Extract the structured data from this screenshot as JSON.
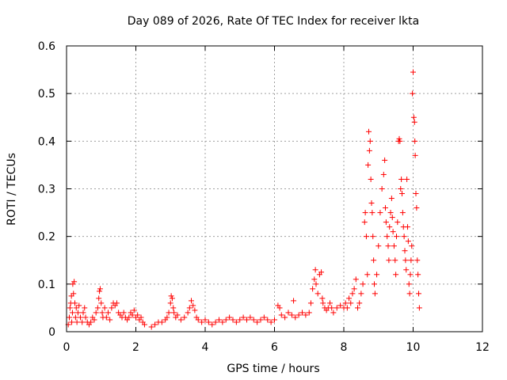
{
  "chart_data": {
    "type": "scatter",
    "title": "Day 089 of 2026, Rate Of TEC Index for receiver lkta",
    "xlabel": "GPS time / hours",
    "ylabel": "ROTI / TECUs",
    "xlim": [
      0,
      12
    ],
    "ylim": [
      0,
      0.6
    ],
    "x_ticks": [
      0,
      2,
      4,
      6,
      8,
      10,
      12
    ],
    "x_tick_labels": [
      "0",
      "2",
      "4",
      "6",
      "8",
      "10",
      "12"
    ],
    "y_ticks": [
      0,
      0.1,
      0.2,
      0.3,
      0.4,
      0.5,
      0.6
    ],
    "y_tick_labels": [
      "0",
      "0.1",
      "0.2",
      "0.3",
      "0.4",
      "0.5",
      "0.6"
    ],
    "grid": true,
    "marker": "plus",
    "marker_color": "#ff0000",
    "series": [
      {
        "name": "ROTI",
        "points": [
          [
            0.05,
            0.015
          ],
          [
            0.08,
            0.03
          ],
          [
            0.1,
            0.05
          ],
          [
            0.12,
            0.06
          ],
          [
            0.14,
            0.075
          ],
          [
            0.15,
            0.02
          ],
          [
            0.17,
            0.04
          ],
          [
            0.18,
            0.1
          ],
          [
            0.2,
            0.08
          ],
          [
            0.22,
            0.105
          ],
          [
            0.24,
            0.06
          ],
          [
            0.26,
            0.03
          ],
          [
            0.28,
            0.05
          ],
          [
            0.3,
            0.02
          ],
          [
            0.33,
            0.04
          ],
          [
            0.36,
            0.055
          ],
          [
            0.4,
            0.03
          ],
          [
            0.45,
            0.02
          ],
          [
            0.48,
            0.04
          ],
          [
            0.52,
            0.05
          ],
          [
            0.55,
            0.03
          ],
          [
            0.6,
            0.02
          ],
          [
            0.65,
            0.015
          ],
          [
            0.7,
            0.02
          ],
          [
            0.75,
            0.03
          ],
          [
            0.8,
            0.025
          ],
          [
            0.85,
            0.04
          ],
          [
            0.9,
            0.05
          ],
          [
            0.93,
            0.07
          ],
          [
            0.95,
            0.085
          ],
          [
            0.97,
            0.09
          ],
          [
            1.0,
            0.06
          ],
          [
            1.03,
            0.04
          ],
          [
            1.05,
            0.03
          ],
          [
            1.1,
            0.05
          ],
          [
            1.15,
            0.03
          ],
          [
            1.2,
            0.04
          ],
          [
            1.25,
            0.025
          ],
          [
            1.3,
            0.05
          ],
          [
            1.35,
            0.06
          ],
          [
            1.4,
            0.055
          ],
          [
            1.45,
            0.06
          ],
          [
            1.5,
            0.04
          ],
          [
            1.55,
            0.035
          ],
          [
            1.6,
            0.03
          ],
          [
            1.65,
            0.04
          ],
          [
            1.7,
            0.03
          ],
          [
            1.75,
            0.025
          ],
          [
            1.8,
            0.03
          ],
          [
            1.85,
            0.04
          ],
          [
            1.9,
            0.035
          ],
          [
            1.95,
            0.045
          ],
          [
            2.0,
            0.03
          ],
          [
            2.05,
            0.035
          ],
          [
            2.1,
            0.025
          ],
          [
            2.15,
            0.03
          ],
          [
            2.2,
            0.02
          ],
          [
            2.25,
            0.015
          ],
          [
            2.45,
            0.01
          ],
          [
            2.55,
            0.015
          ],
          [
            2.65,
            0.02
          ],
          [
            2.75,
            0.02
          ],
          [
            2.85,
            0.025
          ],
          [
            2.9,
            0.03
          ],
          [
            2.95,
            0.04
          ],
          [
            3.0,
            0.06
          ],
          [
            3.02,
            0.075
          ],
          [
            3.05,
            0.07
          ],
          [
            3.08,
            0.05
          ],
          [
            3.1,
            0.04
          ],
          [
            3.15,
            0.03
          ],
          [
            3.2,
            0.035
          ],
          [
            3.3,
            0.025
          ],
          [
            3.4,
            0.03
          ],
          [
            3.5,
            0.04
          ],
          [
            3.55,
            0.05
          ],
          [
            3.6,
            0.065
          ],
          [
            3.65,
            0.055
          ],
          [
            3.7,
            0.045
          ],
          [
            3.75,
            0.03
          ],
          [
            3.8,
            0.025
          ],
          [
            3.9,
            0.02
          ],
          [
            4.0,
            0.025
          ],
          [
            4.1,
            0.02
          ],
          [
            4.2,
            0.015
          ],
          [
            4.3,
            0.02
          ],
          [
            4.4,
            0.025
          ],
          [
            4.5,
            0.02
          ],
          [
            4.6,
            0.025
          ],
          [
            4.7,
            0.03
          ],
          [
            4.8,
            0.025
          ],
          [
            4.9,
            0.02
          ],
          [
            5.0,
            0.025
          ],
          [
            5.1,
            0.03
          ],
          [
            5.2,
            0.025
          ],
          [
            5.3,
            0.03
          ],
          [
            5.4,
            0.025
          ],
          [
            5.5,
            0.02
          ],
          [
            5.6,
            0.025
          ],
          [
            5.7,
            0.03
          ],
          [
            5.8,
            0.025
          ],
          [
            5.9,
            0.02
          ],
          [
            6.0,
            0.025
          ],
          [
            6.1,
            0.055
          ],
          [
            6.15,
            0.05
          ],
          [
            6.2,
            0.035
          ],
          [
            6.3,
            0.03
          ],
          [
            6.4,
            0.04
          ],
          [
            6.5,
            0.035
          ],
          [
            6.55,
            0.065
          ],
          [
            6.6,
            0.03
          ],
          [
            6.7,
            0.035
          ],
          [
            6.8,
            0.04
          ],
          [
            6.9,
            0.035
          ],
          [
            7.0,
            0.04
          ],
          [
            7.05,
            0.06
          ],
          [
            7.1,
            0.09
          ],
          [
            7.15,
            0.11
          ],
          [
            7.18,
            0.13
          ],
          [
            7.2,
            0.1
          ],
          [
            7.25,
            0.08
          ],
          [
            7.3,
            0.12
          ],
          [
            7.35,
            0.125
          ],
          [
            7.38,
            0.07
          ],
          [
            7.4,
            0.06
          ],
          [
            7.45,
            0.05
          ],
          [
            7.5,
            0.045
          ],
          [
            7.55,
            0.05
          ],
          [
            7.6,
            0.06
          ],
          [
            7.65,
            0.05
          ],
          [
            7.7,
            0.04
          ],
          [
            7.8,
            0.05
          ],
          [
            7.9,
            0.055
          ],
          [
            8.0,
            0.05
          ],
          [
            8.05,
            0.06
          ],
          [
            8.1,
            0.05
          ],
          [
            8.15,
            0.07
          ],
          [
            8.2,
            0.06
          ],
          [
            8.25,
            0.08
          ],
          [
            8.3,
            0.09
          ],
          [
            8.35,
            0.11
          ],
          [
            8.4,
            0.05
          ],
          [
            8.45,
            0.06
          ],
          [
            8.5,
            0.08
          ],
          [
            8.55,
            0.1
          ],
          [
            8.6,
            0.23
          ],
          [
            8.62,
            0.25
          ],
          [
            8.65,
            0.2
          ],
          [
            8.68,
            0.12
          ],
          [
            8.7,
            0.35
          ],
          [
            8.72,
            0.42
          ],
          [
            8.74,
            0.38
          ],
          [
            8.76,
            0.4
          ],
          [
            8.78,
            0.32
          ],
          [
            8.8,
            0.27
          ],
          [
            8.82,
            0.25
          ],
          [
            8.84,
            0.2
          ],
          [
            8.86,
            0.15
          ],
          [
            8.88,
            0.1
          ],
          [
            8.9,
            0.08
          ],
          [
            8.95,
            0.12
          ],
          [
            9.0,
            0.18
          ],
          [
            9.05,
            0.25
          ],
          [
            9.1,
            0.3
          ],
          [
            9.15,
            0.33
          ],
          [
            9.18,
            0.36
          ],
          [
            9.2,
            0.26
          ],
          [
            9.22,
            0.23
          ],
          [
            9.25,
            0.2
          ],
          [
            9.28,
            0.18
          ],
          [
            9.3,
            0.15
          ],
          [
            9.32,
            0.22
          ],
          [
            9.35,
            0.25
          ],
          [
            9.38,
            0.28
          ],
          [
            9.4,
            0.24
          ],
          [
            9.42,
            0.21
          ],
          [
            9.45,
            0.18
          ],
          [
            9.48,
            0.15
          ],
          [
            9.5,
            0.12
          ],
          [
            9.52,
            0.2
          ],
          [
            9.55,
            0.23
          ],
          [
            9.58,
            0.4
          ],
          [
            9.6,
            0.405
          ],
          [
            9.62,
            0.4
          ],
          [
            9.64,
            0.3
          ],
          [
            9.66,
            0.32
          ],
          [
            9.68,
            0.29
          ],
          [
            9.7,
            0.25
          ],
          [
            9.72,
            0.22
          ],
          [
            9.74,
            0.2
          ],
          [
            9.76,
            0.17
          ],
          [
            9.78,
            0.15
          ],
          [
            9.8,
            0.13
          ],
          [
            9.82,
            0.32
          ],
          [
            9.84,
            0.22
          ],
          [
            9.86,
            0.19
          ],
          [
            9.88,
            0.1
          ],
          [
            9.9,
            0.08
          ],
          [
            9.92,
            0.12
          ],
          [
            9.94,
            0.15
          ],
          [
            9.96,
            0.18
          ],
          [
            9.98,
            0.5
          ],
          [
            10.0,
            0.545
          ],
          [
            10.02,
            0.45
          ],
          [
            10.04,
            0.44
          ],
          [
            10.05,
            0.4
          ],
          [
            10.06,
            0.37
          ],
          [
            10.08,
            0.29
          ],
          [
            10.1,
            0.26
          ],
          [
            10.12,
            0.15
          ],
          [
            10.14,
            0.12
          ],
          [
            10.16,
            0.08
          ],
          [
            10.18,
            0.05
          ]
        ]
      }
    ]
  }
}
